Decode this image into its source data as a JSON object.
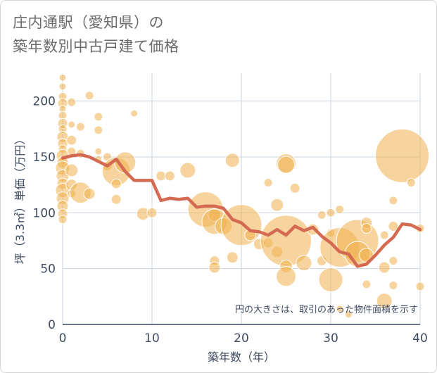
{
  "title": "庄内通駅（愛知県）の\n築年数別中古戸建て価格",
  "chart_data": {
    "type": "scatter",
    "title": "庄内通駅（愛知県）の築年数別中古戸建て価格",
    "xlabel": "築年数（年）",
    "ylabel": "坪（3.3㎡）単価（万円）",
    "xlim": [
      0,
      40
    ],
    "ylim": [
      0,
      225
    ],
    "xticks": [
      0,
      10,
      20,
      30,
      40
    ],
    "yticks": [
      0,
      50,
      100,
      150,
      200
    ],
    "grid": true,
    "note": "円の大きさは、取引のあった物件面積を示す",
    "colors": {
      "bubble": "#f0b04e",
      "line": "#d46a52",
      "grid": "#c9d3de",
      "axis": "#3e4a60"
    },
    "series": [
      {
        "type": "bubble",
        "points": [
          {
            "x": 0,
            "y": 221,
            "s": 5
          },
          {
            "x": 0,
            "y": 213,
            "s": 5
          },
          {
            "x": 0,
            "y": 204,
            "s": 6
          },
          {
            "x": 0,
            "y": 198,
            "s": 7
          },
          {
            "x": 0,
            "y": 193,
            "s": 5
          },
          {
            "x": 0,
            "y": 187,
            "s": 6
          },
          {
            "x": 0,
            "y": 180,
            "s": 7
          },
          {
            "x": 0,
            "y": 175,
            "s": 6
          },
          {
            "x": 0,
            "y": 168,
            "s": 8
          },
          {
            "x": 0,
            "y": 162,
            "s": 7
          },
          {
            "x": 0,
            "y": 157,
            "s": 6
          },
          {
            "x": 0,
            "y": 151,
            "s": 9
          },
          {
            "x": 0,
            "y": 145,
            "s": 8
          },
          {
            "x": 0,
            "y": 140,
            "s": 10
          },
          {
            "x": 0,
            "y": 133,
            "s": 9
          },
          {
            "x": 0,
            "y": 126,
            "s": 8
          },
          {
            "x": 0,
            "y": 120,
            "s": 10
          },
          {
            "x": 0,
            "y": 113,
            "s": 9
          },
          {
            "x": 0,
            "y": 106,
            "s": 8
          },
          {
            "x": 0,
            "y": 99,
            "s": 7
          },
          {
            "x": 0,
            "y": 94,
            "s": 6
          },
          {
            "x": 1,
            "y": 199,
            "s": 6
          },
          {
            "x": 1,
            "y": 179,
            "s": 5
          },
          {
            "x": 1,
            "y": 165,
            "s": 7
          },
          {
            "x": 1,
            "y": 155,
            "s": 6
          },
          {
            "x": 1,
            "y": 138,
            "s": 9
          },
          {
            "x": 1,
            "y": 125,
            "s": 8
          },
          {
            "x": 1,
            "y": 117,
            "s": 6
          },
          {
            "x": 2,
            "y": 177,
            "s": 6
          },
          {
            "x": 2,
            "y": 153,
            "s": 6
          },
          {
            "x": 2,
            "y": 118,
            "s": 15
          },
          {
            "x": 3,
            "y": 205,
            "s": 6
          },
          {
            "x": 3,
            "y": 117,
            "s": 8
          },
          {
            "x": 4,
            "y": 186,
            "s": 6
          },
          {
            "x": 4,
            "y": 174,
            "s": 6
          },
          {
            "x": 4,
            "y": 155,
            "s": 5
          },
          {
            "x": 4,
            "y": 148,
            "s": 5
          },
          {
            "x": 5,
            "y": 142,
            "s": 7
          },
          {
            "x": 5,
            "y": 150,
            "s": 6
          },
          {
            "x": 6,
            "y": 137,
            "s": 20
          },
          {
            "x": 6,
            "y": 126,
            "s": 7
          },
          {
            "x": 6,
            "y": 112,
            "s": 7
          },
          {
            "x": 7,
            "y": 145,
            "s": 15
          },
          {
            "x": 8,
            "y": 189,
            "s": 5
          },
          {
            "x": 9,
            "y": 99,
            "s": 9
          },
          {
            "x": 10,
            "y": 100,
            "s": 7
          },
          {
            "x": 11,
            "y": 133,
            "s": 7
          },
          {
            "x": 12,
            "y": 133,
            "s": 7
          },
          {
            "x": 14,
            "y": 138,
            "s": 11
          },
          {
            "x": 16,
            "y": 103,
            "s": 25
          },
          {
            "x": 17,
            "y": 98,
            "s": 9
          },
          {
            "x": 17,
            "y": 92,
            "s": 18
          },
          {
            "x": 17,
            "y": 57,
            "s": 7
          },
          {
            "x": 17,
            "y": 51,
            "s": 8
          },
          {
            "x": 18,
            "y": 88,
            "s": 12
          },
          {
            "x": 19,
            "y": 147,
            "s": 10
          },
          {
            "x": 19,
            "y": 60,
            "s": 8
          },
          {
            "x": 20,
            "y": 89,
            "s": 29
          },
          {
            "x": 21,
            "y": 80,
            "s": 8
          },
          {
            "x": 22,
            "y": 72,
            "s": 8
          },
          {
            "x": 23,
            "y": 127,
            "s": 6
          },
          {
            "x": 23,
            "y": 73,
            "s": 7
          },
          {
            "x": 24,
            "y": 107,
            "s": 9
          },
          {
            "x": 24,
            "y": 65,
            "s": 8
          },
          {
            "x": 25,
            "y": 144,
            "s": 14
          },
          {
            "x": 25,
            "y": 143,
            "s": 12
          },
          {
            "x": 25,
            "y": 75,
            "s": 36
          },
          {
            "x": 25,
            "y": 52,
            "s": 9
          },
          {
            "x": 25,
            "y": 43,
            "s": 14
          },
          {
            "x": 26,
            "y": 122,
            "s": 7
          },
          {
            "x": 27,
            "y": 55,
            "s": 11
          },
          {
            "x": 28,
            "y": 85,
            "s": 8
          },
          {
            "x": 29,
            "y": 98,
            "s": 6
          },
          {
            "x": 29,
            "y": 57,
            "s": 7
          },
          {
            "x": 30,
            "y": 100,
            "s": 6
          },
          {
            "x": 30,
            "y": 82,
            "s": 6
          },
          {
            "x": 30,
            "y": 40,
            "s": 17
          },
          {
            "x": 31,
            "y": 103,
            "s": 6
          },
          {
            "x": 31,
            "y": 69,
            "s": 28
          },
          {
            "x": 31,
            "y": 14,
            "s": 5
          },
          {
            "x": 32,
            "y": 9,
            "s": 5
          },
          {
            "x": 33,
            "y": 75,
            "s": 30
          },
          {
            "x": 33,
            "y": 63,
            "s": 18
          },
          {
            "x": 34,
            "y": 91,
            "s": 8
          },
          {
            "x": 34,
            "y": 86,
            "s": 7
          },
          {
            "x": 34,
            "y": 62,
            "s": 10
          },
          {
            "x": 34,
            "y": 36,
            "s": 6
          },
          {
            "x": 36,
            "y": 80,
            "s": 6
          },
          {
            "x": 36,
            "y": 51,
            "s": 8
          },
          {
            "x": 36,
            "y": 21,
            "s": 11
          },
          {
            "x": 37,
            "y": 111,
            "s": 6
          },
          {
            "x": 37,
            "y": 88,
            "s": 7
          },
          {
            "x": 37,
            "y": 57,
            "s": 6
          },
          {
            "x": 37,
            "y": 35,
            "s": 6
          },
          {
            "x": 38,
            "y": 151,
            "s": 38
          },
          {
            "x": 39,
            "y": 127,
            "s": 6
          },
          {
            "x": 40,
            "y": 86,
            "s": 6
          },
          {
            "x": 40,
            "y": 34,
            "s": 6
          }
        ]
      },
      {
        "type": "line",
        "x": [
          0,
          1,
          2,
          3,
          4,
          5,
          6,
          7,
          8,
          9,
          10,
          11,
          12,
          13,
          14,
          15,
          16,
          17,
          18,
          19,
          20,
          21,
          22,
          23,
          24,
          25,
          26,
          27,
          28,
          29,
          30,
          31,
          32,
          33,
          34,
          35,
          36,
          37,
          38,
          39,
          40
        ],
        "y": [
          149,
          151,
          152,
          150,
          146,
          142,
          148,
          137,
          129,
          129,
          129,
          111,
          113,
          112,
          113,
          105,
          106,
          106,
          104,
          94,
          91,
          84,
          83,
          80,
          85,
          80,
          88,
          84,
          87,
          79,
          73,
          65,
          63,
          52,
          54,
          62,
          71,
          78,
          90,
          89,
          85
        ]
      }
    ]
  }
}
